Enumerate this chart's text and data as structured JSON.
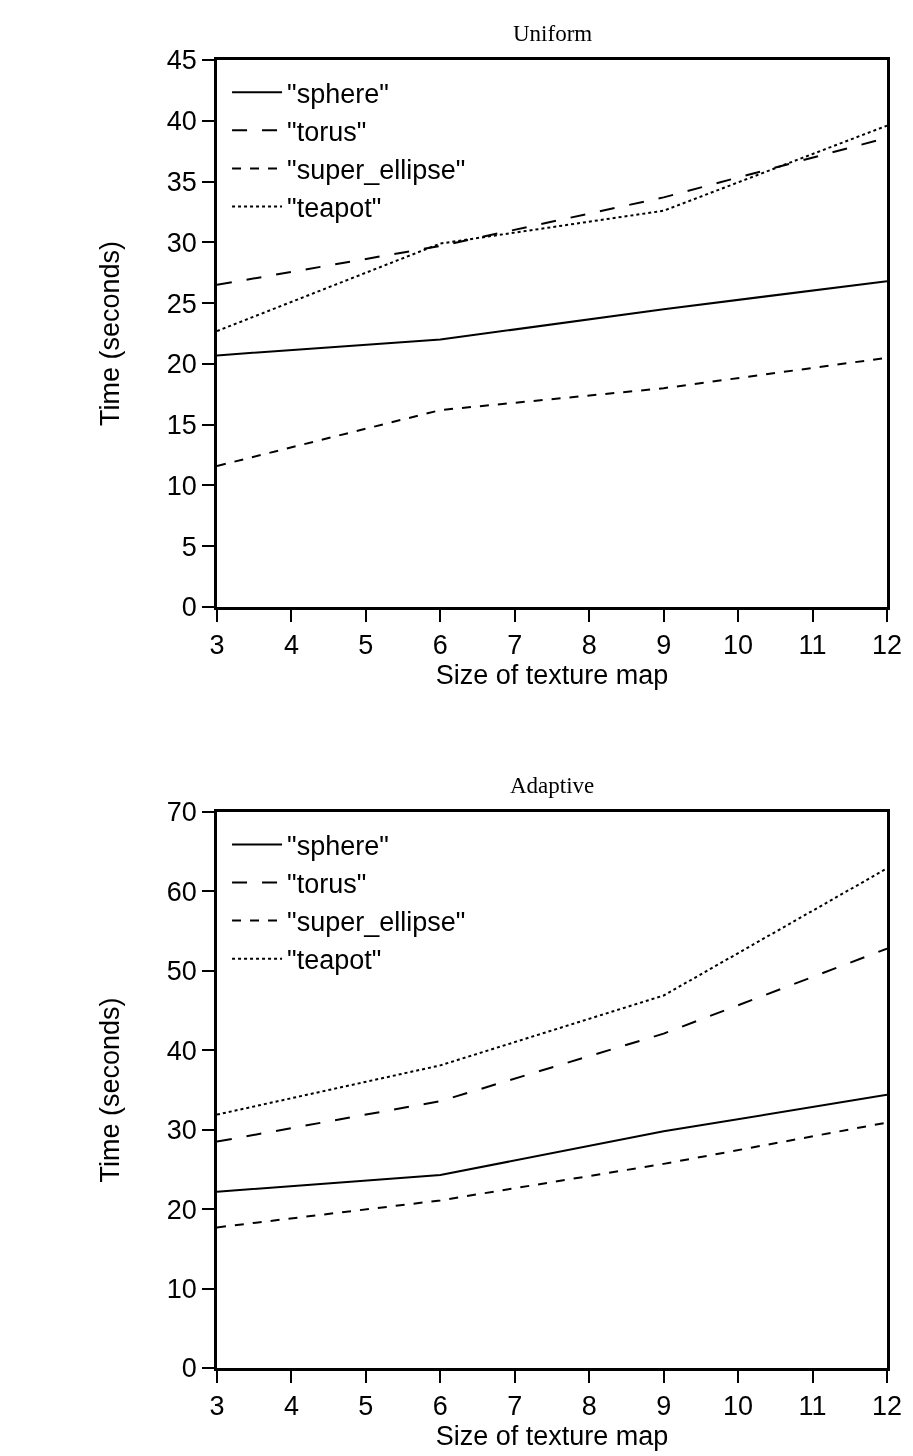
{
  "chart_data": [
    {
      "type": "line",
      "title": "Uniform",
      "xlabel": "Size of texture map",
      "ylabel": "Time (seconds)",
      "x": [
        3,
        6,
        9,
        12
      ],
      "xlim": [
        3,
        12
      ],
      "xticks": [
        3,
        4,
        5,
        6,
        7,
        8,
        9,
        10,
        11,
        12
      ],
      "ylim": [
        0,
        45
      ],
      "yticks": [
        0,
        5,
        10,
        15,
        20,
        25,
        30,
        35,
        40,
        45
      ],
      "grid": false,
      "legend": "top left",
      "marker": "none",
      "series": [
        {
          "name": "\"sphere\"",
          "color": "#000000",
          "line_style": "solid",
          "values": [
            20.7,
            22.0,
            24.5,
            26.8
          ]
        },
        {
          "name": "\"torus\"",
          "color": "#000000",
          "line_style": "long dashed",
          "values": [
            26.5,
            29.7,
            33.7,
            38.6
          ]
        },
        {
          "name": "\"super_ellipse\"",
          "color": "#000000",
          "line_style": "dashed",
          "values": [
            11.6,
            16.2,
            18.0,
            20.5
          ]
        },
        {
          "name": "\"teapot\"",
          "color": "#000000",
          "line_style": "dotted",
          "values": [
            22.7,
            29.9,
            32.6,
            39.6
          ]
        }
      ]
    },
    {
      "type": "line",
      "title": "Adaptive",
      "xlabel": "Size of texture map",
      "ylabel": "Time (seconds)",
      "x": [
        3,
        6,
        9,
        12
      ],
      "xlim": [
        3,
        12
      ],
      "xticks": [
        3,
        4,
        5,
        6,
        7,
        8,
        9,
        10,
        11,
        12
      ],
      "ylim": [
        0,
        70
      ],
      "yticks": [
        0,
        10,
        20,
        30,
        40,
        50,
        60,
        70
      ],
      "grid": false,
      "legend": "top left",
      "marker": "none",
      "series": [
        {
          "name": "\"sphere\"",
          "color": "#000000",
          "line_style": "solid",
          "values": [
            22.2,
            24.3,
            29.8,
            34.4
          ]
        },
        {
          "name": "\"torus\"",
          "color": "#000000",
          "line_style": "long dashed",
          "values": [
            28.5,
            33.6,
            42.1,
            52.8
          ]
        },
        {
          "name": "\"super_ellipse\"",
          "color": "#000000",
          "line_style": "dashed",
          "values": [
            17.7,
            21.1,
            25.7,
            30.9
          ]
        },
        {
          "name": "\"teapot\"",
          "color": "#000000",
          "line_style": "dotted",
          "values": [
            31.9,
            38.1,
            46.9,
            62.9
          ]
        }
      ]
    }
  ]
}
